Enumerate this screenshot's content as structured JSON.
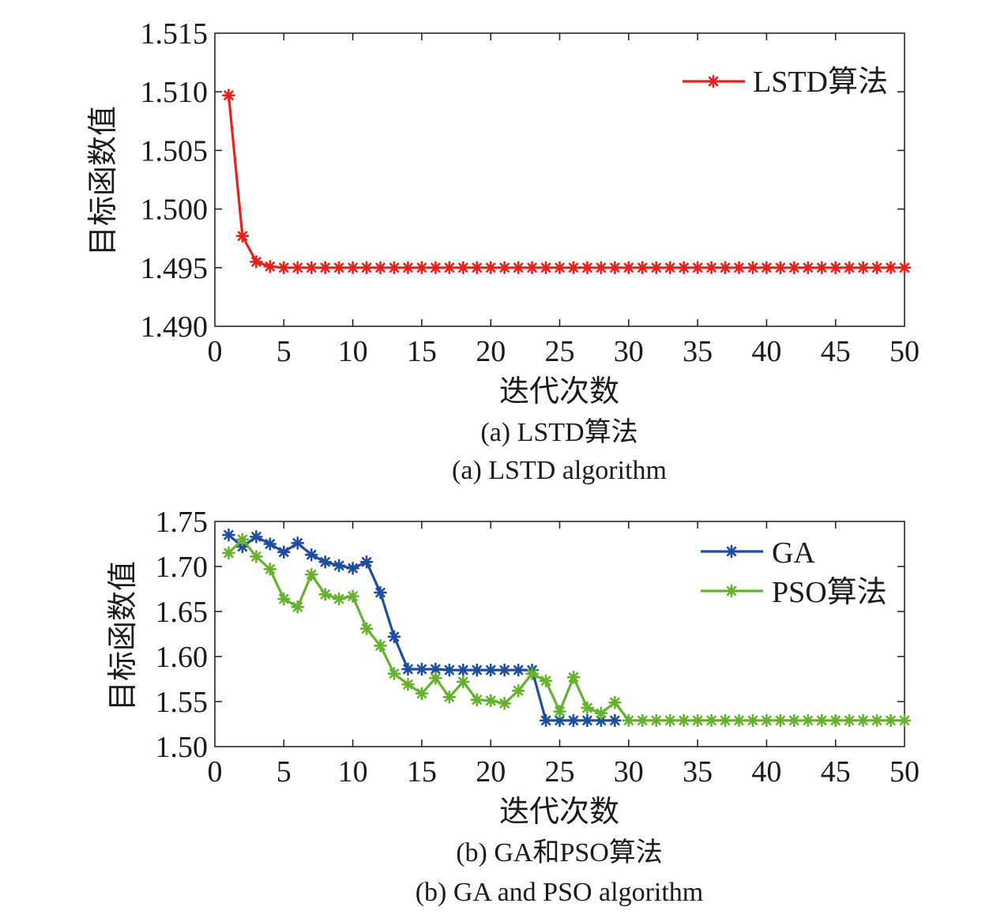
{
  "chart_data": [
    {
      "type": "line",
      "panel": "a",
      "xlabel": "迭代次数",
      "ylabel": "目标函数值",
      "caption_cn": "(a) LSTD算法",
      "caption_en": "(a) LSTD algorithm",
      "xlim": [
        0,
        50
      ],
      "ylim": [
        1.49,
        1.515
      ],
      "x_ticks": [
        "0",
        "5",
        "10",
        "15",
        "20",
        "25",
        "30",
        "35",
        "40",
        "45",
        "50"
      ],
      "y_ticks": [
        "1.490",
        "1.495",
        "1.500",
        "1.505",
        "1.510",
        "1.515"
      ],
      "grid": false,
      "legend_position": "top-right",
      "series": [
        {
          "name": "LSTD算法",
          "color": "#e8211d",
          "marker": "asterisk",
          "x": [
            1,
            2,
            3,
            4,
            5,
            6,
            7,
            8,
            9,
            10,
            11,
            12,
            13,
            14,
            15,
            16,
            17,
            18,
            19,
            20,
            21,
            22,
            23,
            24,
            25,
            26,
            27,
            28,
            29,
            30,
            31,
            32,
            33,
            34,
            35,
            36,
            37,
            38,
            39,
            40,
            41,
            42,
            43,
            44,
            45,
            46,
            47,
            48,
            49,
            50
          ],
          "values": [
            1.5097,
            1.4977,
            1.4955,
            1.4951,
            1.495,
            1.495,
            1.495,
            1.495,
            1.495,
            1.495,
            1.495,
            1.495,
            1.495,
            1.495,
            1.495,
            1.495,
            1.495,
            1.495,
            1.495,
            1.495,
            1.495,
            1.495,
            1.495,
            1.495,
            1.495,
            1.495,
            1.495,
            1.495,
            1.495,
            1.495,
            1.495,
            1.495,
            1.495,
            1.495,
            1.495,
            1.495,
            1.495,
            1.495,
            1.495,
            1.495,
            1.495,
            1.495,
            1.495,
            1.495,
            1.495,
            1.495,
            1.495,
            1.495,
            1.495,
            1.495
          ]
        }
      ]
    },
    {
      "type": "line",
      "panel": "b",
      "xlabel": "迭代次数",
      "ylabel": "目标函数值",
      "caption_cn": "(b) GA和PSO算法",
      "caption_en": "(b) GA and PSO algorithm",
      "xlim": [
        0,
        50
      ],
      "ylim": [
        1.5,
        1.75
      ],
      "x_ticks": [
        "0",
        "5",
        "10",
        "15",
        "20",
        "25",
        "30",
        "35",
        "40",
        "45",
        "50"
      ],
      "y_ticks": [
        "1.50",
        "1.55",
        "1.60",
        "1.65",
        "1.70",
        "1.75"
      ],
      "grid": false,
      "legend_position": "top-right",
      "series": [
        {
          "name": "GA",
          "color": "#1f4e9f",
          "marker": "asterisk",
          "x": [
            1,
            2,
            3,
            4,
            5,
            6,
            7,
            8,
            9,
            10,
            11,
            12,
            13,
            14,
            15,
            16,
            17,
            18,
            19,
            20,
            21,
            22,
            23,
            24,
            25,
            26,
            27,
            28,
            29
          ],
          "values": [
            1.735,
            1.722,
            1.733,
            1.725,
            1.716,
            1.726,
            1.713,
            1.705,
            1.701,
            1.698,
            1.705,
            1.671,
            1.622,
            1.586,
            1.586,
            1.586,
            1.585,
            1.585,
            1.585,
            1.585,
            1.585,
            1.585,
            1.585,
            1.529,
            1.529,
            1.529,
            1.529,
            1.529,
            1.529
          ]
        },
        {
          "name": "PSO算法",
          "color": "#66b22e",
          "marker": "asterisk",
          "x": [
            1,
            2,
            3,
            4,
            5,
            6,
            7,
            8,
            9,
            10,
            11,
            12,
            13,
            14,
            15,
            16,
            17,
            18,
            19,
            20,
            21,
            22,
            23,
            24,
            25,
            26,
            27,
            28,
            29,
            30,
            31,
            32,
            33,
            34,
            35,
            36,
            37,
            38,
            39,
            40,
            41,
            42,
            43,
            44,
            45,
            46,
            47,
            48,
            49,
            50
          ],
          "values": [
            1.715,
            1.73,
            1.711,
            1.697,
            1.664,
            1.655,
            1.691,
            1.669,
            1.664,
            1.667,
            1.631,
            1.612,
            1.581,
            1.569,
            1.559,
            1.576,
            1.555,
            1.572,
            1.552,
            1.551,
            1.548,
            1.562,
            1.581,
            1.573,
            1.539,
            1.577,
            1.543,
            1.537,
            1.549,
            1.529,
            1.529,
            1.529,
            1.529,
            1.529,
            1.529,
            1.529,
            1.529,
            1.529,
            1.529,
            1.529,
            1.529,
            1.529,
            1.529,
            1.529,
            1.529,
            1.529,
            1.529,
            1.529,
            1.529,
            1.529
          ]
        }
      ]
    }
  ]
}
